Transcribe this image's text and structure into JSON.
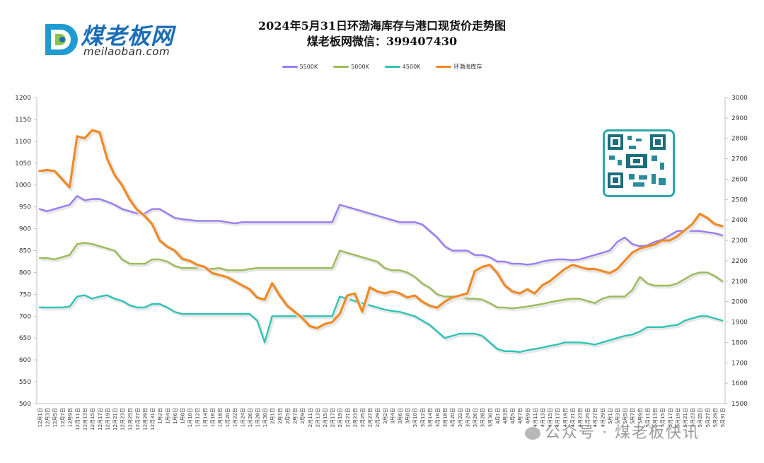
{
  "logo": {
    "brand": "煤老板网",
    "domain": "meilaoban.com"
  },
  "title": {
    "line1": "2024年5月31日环渤海库存与港口现货价走势图",
    "line2": "煤老板网微信：399407430"
  },
  "legend": [
    {
      "name": "5500K",
      "color": "#9a7df0"
    },
    {
      "name": "5000K",
      "color": "#9bbb59"
    },
    {
      "name": "4500K",
      "color": "#2ec4b6"
    },
    {
      "name": "环渤海库存",
      "color": "#f08a24"
    }
  ],
  "watermark": "公众号 · 煤老板快讯",
  "chart_data": {
    "type": "line",
    "x_labels": [
      "12月1日",
      "12月3日",
      "12月5日",
      "12月7日",
      "12月9日",
      "12月11日",
      "12月13日",
      "12月15日",
      "12月17日",
      "12月19日",
      "12月21日",
      "12月23日",
      "12月25日",
      "12月27日",
      "12月29日",
      "12月31日",
      "1月2日",
      "1月4日",
      "1月6日",
      "1月8日",
      "1月10日",
      "1月12日",
      "1月14日",
      "1月16日",
      "1月18日",
      "1月20日",
      "1月22日",
      "1月24日",
      "1月26日",
      "1月28日",
      "1月30日",
      "2月1日",
      "2月3日",
      "2月5日",
      "2月7日",
      "2月9日",
      "2月11日",
      "2月13日",
      "2月15日",
      "2月17日",
      "2月19日",
      "2月21日",
      "2月23日",
      "2月25日",
      "2月27日",
      "2月29日",
      "3月2日",
      "3月4日",
      "3月6日",
      "3月8日",
      "3月10日",
      "3月12日",
      "3月14日",
      "3月16日",
      "3月18日",
      "3月20日",
      "3月22日",
      "3月24日",
      "3月26日",
      "3月28日",
      "3月30日",
      "4月1日",
      "4月3日",
      "4月5日",
      "4月7日",
      "4月9日",
      "4月11日",
      "4月13日",
      "4月15日",
      "4月17日",
      "4月19日",
      "4月21日",
      "4月23日",
      "4月25日",
      "4月27日",
      "4月29日",
      "5月1日",
      "5月3日",
      "5月5日",
      "5月7日",
      "5月9日",
      "5月11日",
      "5月13日",
      "5月15日",
      "5月17日",
      "5月19日",
      "5月21日",
      "5月23日",
      "5月25日",
      "5月27日",
      "5月29日",
      "5月31日"
    ],
    "y_left": {
      "min": 500,
      "max": 1200,
      "step": 50
    },
    "y_right": {
      "min": 1500,
      "max": 3000,
      "step": 100
    },
    "series": [
      {
        "name": "5500K",
        "axis": "left",
        "color": "#9a7df0",
        "values": [
          945,
          940,
          945,
          950,
          955,
          975,
          965,
          968,
          968,
          962,
          955,
          945,
          940,
          935,
          935,
          945,
          945,
          935,
          925,
          922,
          920,
          918,
          918,
          918,
          918,
          915,
          912,
          915,
          915,
          915,
          915,
          915,
          915,
          915,
          915,
          915,
          915,
          915,
          915,
          915,
          955,
          950,
          945,
          940,
          935,
          930,
          925,
          920,
          915,
          915,
          915,
          910,
          895,
          880,
          860,
          850,
          850,
          850,
          840,
          840,
          835,
          825,
          825,
          820,
          820,
          818,
          820,
          825,
          828,
          830,
          830,
          828,
          830,
          835,
          840,
          845,
          850,
          870,
          880,
          865,
          860,
          862,
          870,
          875,
          885,
          895,
          895,
          895,
          895,
          892,
          890,
          885
        ]
      },
      {
        "name": "5000K",
        "axis": "left",
        "color": "#9bbb59",
        "values": [
          833,
          833,
          830,
          835,
          840,
          865,
          868,
          865,
          860,
          855,
          850,
          830,
          820,
          820,
          820,
          830,
          830,
          825,
          815,
          810,
          810,
          810,
          810,
          808,
          810,
          805,
          805,
          805,
          808,
          810,
          810,
          810,
          810,
          810,
          810,
          810,
          810,
          810,
          810,
          810,
          850,
          845,
          840,
          835,
          830,
          825,
          810,
          805,
          805,
          800,
          790,
          775,
          765,
          750,
          745,
          745,
          745,
          740,
          740,
          738,
          730,
          720,
          720,
          718,
          720,
          722,
          725,
          728,
          732,
          735,
          738,
          740,
          740,
          735,
          730,
          740,
          745,
          745,
          745,
          760,
          790,
          775,
          770,
          770,
          770,
          775,
          785,
          795,
          800,
          800,
          792,
          780
        ]
      },
      {
        "name": "4500K",
        "axis": "left",
        "color": "#2ec4b6",
        "values": [
          720,
          720,
          720,
          720,
          722,
          745,
          748,
          740,
          745,
          748,
          740,
          735,
          725,
          720,
          720,
          728,
          728,
          720,
          710,
          705,
          705,
          705,
          705,
          705,
          705,
          705,
          705,
          705,
          705,
          690,
          640,
          700,
          700,
          700,
          700,
          700,
          700,
          700,
          700,
          700,
          745,
          740,
          735,
          730,
          725,
          720,
          715,
          712,
          710,
          705,
          700,
          690,
          680,
          665,
          650,
          655,
          660,
          660,
          660,
          655,
          640,
          625,
          620,
          620,
          618,
          622,
          625,
          628,
          632,
          635,
          640,
          640,
          640,
          638,
          635,
          640,
          645,
          650,
          655,
          658,
          665,
          675,
          675,
          675,
          678,
          680,
          690,
          695,
          700,
          700,
          695,
          690
        ]
      },
      {
        "name": "环渤海库存",
        "axis": "right",
        "color": "#f08a24",
        "values": [
          2640,
          2645,
          2640,
          2600,
          2560,
          2810,
          2800,
          2840,
          2830,
          2700,
          2620,
          2570,
          2500,
          2450,
          2420,
          2380,
          2300,
          2270,
          2250,
          2210,
          2200,
          2180,
          2170,
          2140,
          2130,
          2120,
          2100,
          2080,
          2060,
          2020,
          2010,
          2090,
          2030,
          1980,
          1950,
          1920,
          1880,
          1870,
          1890,
          1900,
          1940,
          2030,
          2040,
          1950,
          2070,
          2050,
          2040,
          2050,
          2040,
          2020,
          2030,
          2000,
          1980,
          1970,
          2000,
          2020,
          2030,
          2040,
          2150,
          2170,
          2180,
          2140,
          2080,
          2050,
          2040,
          2060,
          2040,
          2080,
          2100,
          2130,
          2160,
          2180,
          2170,
          2160,
          2160,
          2150,
          2140,
          2160,
          2200,
          2240,
          2260,
          2270,
          2280,
          2300,
          2300,
          2320,
          2350,
          2380,
          2430,
          2410,
          2380,
          2370
        ]
      }
    ]
  }
}
